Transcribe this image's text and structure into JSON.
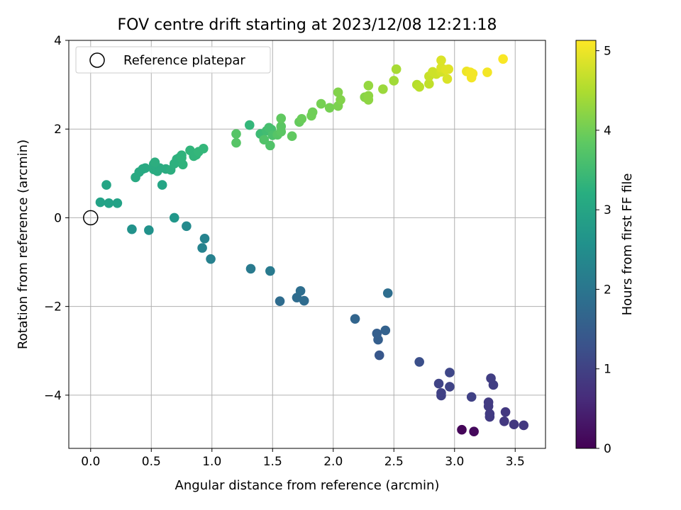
{
  "chart_data": {
    "type": "scatter",
    "title": "FOV centre drift starting at 2023/12/08 12:21:18",
    "xlabel": "Angular distance from reference (arcmin)",
    "ylabel": "Rotation from reference (arcmin)",
    "xlim": [
      -0.18,
      3.75
    ],
    "ylim": [
      -5.2,
      4.0
    ],
    "xticks": [
      0.0,
      0.5,
      1.0,
      1.5,
      2.0,
      2.5,
      3.0,
      3.5
    ],
    "xtick_labels": [
      "0.0",
      "0.5",
      "1.0",
      "1.5",
      "2.0",
      "2.5",
      "3.0",
      "3.5"
    ],
    "yticks": [
      -4,
      -2,
      0,
      2,
      4
    ],
    "ytick_labels": [
      "−4",
      "−2",
      "0",
      "2",
      "4"
    ],
    "grid": true,
    "legend": {
      "placement": "top-left",
      "entries": [
        {
          "label": "Reference platepar",
          "marker": "open-circle",
          "x": 0.0,
          "y": 0.0
        }
      ]
    },
    "colorbar": {
      "label": "Hours from first FF file",
      "range": [
        0,
        5.13
      ],
      "ticks": [
        0,
        1,
        2,
        3,
        4,
        5
      ],
      "tick_labels": [
        "0",
        "1",
        "2",
        "3",
        "4",
        "5"
      ],
      "colormap": "viridis"
    },
    "points": [
      [
        3.06,
        -4.78,
        0.08
      ],
      [
        3.16,
        -4.82,
        0.12
      ],
      [
        3.57,
        -4.68,
        0.85
      ],
      [
        3.49,
        -4.66,
        0.85
      ],
      [
        3.41,
        -4.59,
        0.85
      ],
      [
        3.42,
        -4.38,
        0.85
      ],
      [
        3.29,
        -4.49,
        0.9
      ],
      [
        3.29,
        -4.42,
        0.9
      ],
      [
        3.28,
        -4.25,
        0.9
      ],
      [
        3.28,
        -4.16,
        0.9
      ],
      [
        3.32,
        -3.77,
        0.95
      ],
      [
        3.3,
        -3.62,
        0.95
      ],
      [
        3.14,
        -4.04,
        1.0
      ],
      [
        2.89,
        -3.95,
        1.0
      ],
      [
        2.89,
        -4.01,
        1.0
      ],
      [
        2.87,
        -3.74,
        1.05
      ],
      [
        2.96,
        -3.81,
        1.05
      ],
      [
        2.96,
        -3.49,
        1.1
      ],
      [
        2.71,
        -3.25,
        1.25
      ],
      [
        2.38,
        -3.1,
        1.4
      ],
      [
        2.37,
        -2.75,
        1.55
      ],
      [
        2.36,
        -2.61,
        1.55
      ],
      [
        2.43,
        -2.54,
        1.6
      ],
      [
        2.18,
        -2.28,
        1.65
      ],
      [
        1.56,
        -1.88,
        1.8
      ],
      [
        1.76,
        -1.87,
        1.8
      ],
      [
        1.7,
        -1.8,
        1.8
      ],
      [
        1.73,
        -1.65,
        1.85
      ],
      [
        2.45,
        -1.7,
        1.85
      ],
      [
        1.48,
        -1.2,
        2.1
      ],
      [
        1.32,
        -1.15,
        2.1
      ],
      [
        0.99,
        -0.93,
        2.25
      ],
      [
        0.92,
        -0.68,
        2.3
      ],
      [
        0.94,
        -0.47,
        2.3
      ],
      [
        0.79,
        -0.19,
        2.45
      ],
      [
        0.48,
        -0.28,
        2.6
      ],
      [
        0.34,
        -0.26,
        2.6
      ],
      [
        0.69,
        0.0,
        2.7
      ],
      [
        0.08,
        0.35,
        2.95
      ],
      [
        0.15,
        0.33,
        2.95
      ],
      [
        0.22,
        0.33,
        2.95
      ],
      [
        0.13,
        0.74,
        3.0
      ],
      [
        0.59,
        0.74,
        3.0
      ],
      [
        0.37,
        0.91,
        3.1
      ],
      [
        0.4,
        1.03,
        3.1
      ],
      [
        0.43,
        1.1,
        3.1
      ],
      [
        0.45,
        1.12,
        3.1
      ],
      [
        0.52,
        1.09,
        3.15
      ],
      [
        0.55,
        1.05,
        3.15
      ],
      [
        0.57,
        1.12,
        3.15
      ],
      [
        0.52,
        1.21,
        3.15
      ],
      [
        0.62,
        1.1,
        3.15
      ],
      [
        0.53,
        1.25,
        3.2
      ],
      [
        0.66,
        1.08,
        3.2
      ],
      [
        0.69,
        1.22,
        3.25
      ],
      [
        0.71,
        1.32,
        3.25
      ],
      [
        0.73,
        1.35,
        3.25
      ],
      [
        0.75,
        1.41,
        3.3
      ],
      [
        0.76,
        1.2,
        3.3
      ],
      [
        0.75,
        1.35,
        3.3
      ],
      [
        0.82,
        1.52,
        3.35
      ],
      [
        0.85,
        1.39,
        3.35
      ],
      [
        0.87,
        1.42,
        3.35
      ],
      [
        0.89,
        1.49,
        3.4
      ],
      [
        0.93,
        1.56,
        3.4
      ],
      [
        1.31,
        2.09,
        3.4
      ],
      [
        1.4,
        1.89,
        3.5
      ],
      [
        1.45,
        1.96,
        3.55
      ],
      [
        1.47,
        2.03,
        3.6
      ],
      [
        1.49,
        1.99,
        3.6
      ],
      [
        1.5,
        1.86,
        3.65
      ],
      [
        1.43,
        1.76,
        3.7
      ],
      [
        1.48,
        1.63,
        3.7
      ],
      [
        1.2,
        1.89,
        3.75
      ],
      [
        1.2,
        1.69,
        3.75
      ],
      [
        1.54,
        1.87,
        3.75
      ],
      [
        1.57,
        1.94,
        3.8
      ],
      [
        1.57,
        2.06,
        3.8
      ],
      [
        1.57,
        2.24,
        3.85
      ],
      [
        1.66,
        1.84,
        3.85
      ],
      [
        1.72,
        2.16,
        3.9
      ],
      [
        1.74,
        2.23,
        3.95
      ],
      [
        1.82,
        2.3,
        4.0
      ],
      [
        1.83,
        2.38,
        4.0
      ],
      [
        1.9,
        2.57,
        4.05
      ],
      [
        1.97,
        2.48,
        4.05
      ],
      [
        2.04,
        2.52,
        4.1
      ],
      [
        2.04,
        2.83,
        4.15
      ],
      [
        2.06,
        2.66,
        4.15
      ],
      [
        2.26,
        2.72,
        4.2
      ],
      [
        2.29,
        2.66,
        4.25
      ],
      [
        2.29,
        2.75,
        4.25
      ],
      [
        2.29,
        2.98,
        4.3
      ],
      [
        2.41,
        2.9,
        4.35
      ],
      [
        2.5,
        3.09,
        4.4
      ],
      [
        2.52,
        3.35,
        4.45
      ],
      [
        2.69,
        3.0,
        4.55
      ],
      [
        2.71,
        2.95,
        4.6
      ],
      [
        2.79,
        3.02,
        4.65
      ],
      [
        2.79,
        3.19,
        4.7
      ],
      [
        2.82,
        3.29,
        4.75
      ],
      [
        2.85,
        3.24,
        4.75
      ],
      [
        2.89,
        3.29,
        4.8
      ],
      [
        2.89,
        3.38,
        4.85
      ],
      [
        2.89,
        3.55,
        4.85
      ],
      [
        2.94,
        3.13,
        4.85
      ],
      [
        2.93,
        3.34,
        4.9
      ],
      [
        2.95,
        3.35,
        4.9
      ],
      [
        3.1,
        3.3,
        5.0
      ],
      [
        3.13,
        3.28,
        5.05
      ],
      [
        3.14,
        3.16,
        5.05
      ],
      [
        3.15,
        3.25,
        5.05
      ],
      [
        3.27,
        3.28,
        5.05
      ],
      [
        3.4,
        3.58,
        5.1
      ]
    ]
  }
}
